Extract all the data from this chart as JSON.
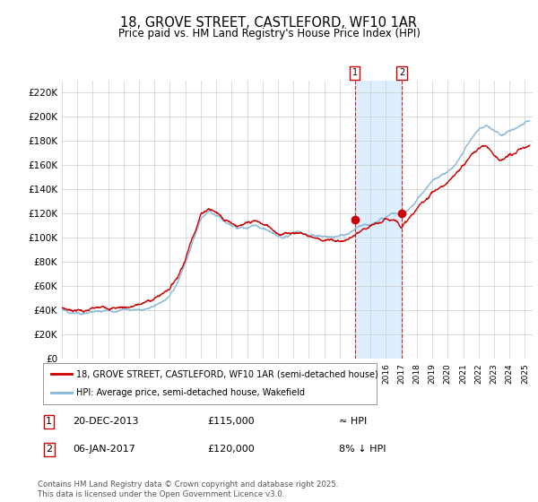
{
  "title": "18, GROVE STREET, CASTLEFORD, WF10 1AR",
  "subtitle": "Price paid vs. HM Land Registry's House Price Index (HPI)",
  "ylim": [
    0,
    230000
  ],
  "xlim_start": 1995.0,
  "xlim_end": 2025.5,
  "hpi_color": "#85b8d8",
  "price_color": "#cc0000",
  "background_color": "#ffffff",
  "grid_color": "#cccccc",
  "sale1_date": 2013.97,
  "sale1_price": 115000,
  "sale2_date": 2017.02,
  "sale2_price": 120000,
  "legend_line1": "18, GROVE STREET, CASTLEFORD, WF10 1AR (semi-detached house)",
  "legend_line2": "HPI: Average price, semi-detached house, Wakefield",
  "table_row1": [
    "1",
    "20-DEC-2013",
    "£115,000",
    "≈ HPI"
  ],
  "table_row2": [
    "2",
    "06-JAN-2017",
    "£120,000",
    "8% ↓ HPI"
  ],
  "footnote": "Contains HM Land Registry data © Crown copyright and database right 2025.\nThis data is licensed under the Open Government Licence v3.0.",
  "yticks": [
    0,
    20000,
    40000,
    60000,
    80000,
    100000,
    120000,
    140000,
    160000,
    180000,
    200000,
    220000
  ],
  "ytick_labels": [
    "£0",
    "£20K",
    "£40K",
    "£60K",
    "£80K",
    "£100K",
    "£120K",
    "£140K",
    "£160K",
    "£180K",
    "£200K",
    "£220K"
  ],
  "xticks": [
    1995,
    1996,
    1997,
    1998,
    1999,
    2000,
    2001,
    2002,
    2003,
    2004,
    2005,
    2006,
    2007,
    2008,
    2009,
    2010,
    2011,
    2012,
    2013,
    2014,
    2015,
    2016,
    2017,
    2018,
    2019,
    2020,
    2021,
    2022,
    2023,
    2024,
    2025
  ],
  "shade_color": "#ddeeff",
  "vline_color": "#cc0000"
}
